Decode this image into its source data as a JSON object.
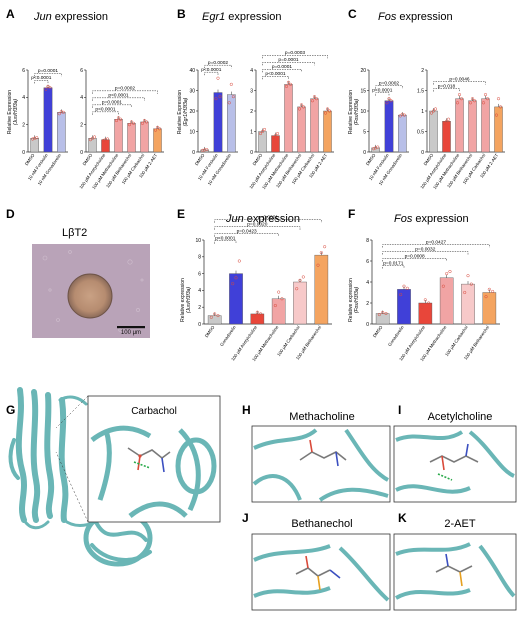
{
  "colors": {
    "grey": "#c9c9c9",
    "red": "#e8463a",
    "pink": "#f1a4a4",
    "orange": "#f4a460",
    "blue": "#4040d8",
    "lavender": "#b8bfe8",
    "lightpink": "#f7c9c9",
    "dots": "#d9493c",
    "teal": "#7ec8c8",
    "tealDark": "#3a8f8f"
  },
  "panels": {
    "A": {
      "letter": "A",
      "gene": "Jun",
      "title_suffix": " expression",
      "ylabel": "Relative Expression",
      "ylabel2": "(Jun/H3f3a)"
    },
    "B": {
      "letter": "B",
      "gene": "Egr1",
      "title_suffix": " expression",
      "ylabel": "Relative Expression",
      "ylabel2": "(Egr1/H3f3a)"
    },
    "C": {
      "letter": "C",
      "gene": "Fos",
      "title_suffix": " expression",
      "ylabel": "Relative Expression",
      "ylabel2": "(Fos/H3f3a)"
    },
    "D": {
      "letter": "D",
      "label": "LβT2",
      "scalebar": "100 μm"
    },
    "E": {
      "letter": "E",
      "gene": "Jun",
      "title_suffix": " expression",
      "ylabel": "Relative expression",
      "ylabel2": "(Jun/H3f3a)"
    },
    "F": {
      "letter": "F",
      "gene": "Fos",
      "title_suffix": " expression",
      "ylabel": "Relative expression",
      "ylabel2": "(Fos/H3f3a)"
    },
    "G": {
      "letter": "G",
      "title": "Carbachol"
    },
    "H": {
      "letter": "H",
      "title": "Methacholine"
    },
    "I": {
      "letter": "I",
      "title": "Acetylcholine"
    },
    "J": {
      "letter": "J",
      "title": "Bethanechol"
    },
    "K": {
      "letter": "K",
      "title": "2-AET"
    }
  },
  "chart_data": [
    {
      "panel": "A-left",
      "type": "bar",
      "categories": [
        "DMSO",
        "10 nM Forskolin",
        "10 nM Gonadorelin"
      ],
      "values": [
        1.0,
        4.7,
        2.9
      ],
      "colors": [
        "grey",
        "blue",
        "lavender"
      ],
      "ylim": [
        0,
        6
      ],
      "yticks": [
        0,
        2,
        4,
        6
      ],
      "points": [
        [
          0.95,
          1.0,
          1.05
        ],
        [
          4.6,
          4.8,
          4.7
        ],
        [
          2.8,
          2.95,
          2.9
        ]
      ],
      "sig": [
        {
          "a": 0,
          "b": 1,
          "label": "p<0.0001"
        },
        {
          "a": 0,
          "b": 2,
          "label": "p=0.0001"
        }
      ]
    },
    {
      "panel": "A-right",
      "type": "bar",
      "categories": [
        "DMSO",
        "100 μM Acetylcholine",
        "100 μM Methacholine",
        "100 μM Bethanechol",
        "100 μM Carbachol",
        "100 μM 2-AET"
      ],
      "values": [
        1.0,
        0.9,
        2.4,
        2.1,
        2.2,
        1.7
      ],
      "colors": [
        "grey",
        "red",
        "pink",
        "pink",
        "pink",
        "orange"
      ],
      "ylim": [
        0,
        6
      ],
      "yticks": [
        0,
        2,
        4,
        6
      ],
      "points": [
        [
          0.9,
          1.0,
          1.1
        ],
        [
          0.85,
          0.9,
          0.95
        ],
        [
          2.3,
          2.5,
          2.4
        ],
        [
          2.0,
          2.2,
          2.1
        ],
        [
          2.1,
          2.3,
          2.2
        ],
        [
          1.6,
          1.8,
          1.7
        ]
      ],
      "sig": [
        {
          "a": 0,
          "b": 2,
          "label": "p<0.0001"
        },
        {
          "a": 0,
          "b": 3,
          "label": "p=0.0001"
        },
        {
          "a": 0,
          "b": 4,
          "label": "p<0.0001"
        },
        {
          "a": 0,
          "b": 5,
          "label": "p=0.0002"
        }
      ]
    },
    {
      "panel": "B-left",
      "type": "bar",
      "categories": [
        "DMSO",
        "10 nM Forskolin",
        "10 nM Gonadorelin"
      ],
      "values": [
        1.0,
        29,
        28
      ],
      "colors": [
        "grey",
        "blue",
        "lavender"
      ],
      "ylim": [
        0,
        40
      ],
      "yticks": [
        0,
        10,
        20,
        30,
        40
      ],
      "points": [
        [
          0.8,
          1.0,
          1.2
        ],
        [
          26,
          36,
          27
        ],
        [
          24,
          33,
          27
        ]
      ],
      "sig": [
        {
          "a": 0,
          "b": 1,
          "label": "p<0.0001"
        },
        {
          "a": 0,
          "b": 2,
          "label": "p=0.0002"
        }
      ]
    },
    {
      "panel": "B-right",
      "type": "bar",
      "categories": [
        "DMSO",
        "100 μM Acetylcholine",
        "100 μM Methacholine",
        "100 μM Bethanechol",
        "100 μM Carbachol",
        "100 μM 2-AET"
      ],
      "values": [
        1.0,
        0.8,
        3.3,
        2.2,
        2.6,
        2.0
      ],
      "colors": [
        "grey",
        "red",
        "pink",
        "pink",
        "pink",
        "orange"
      ],
      "ylim": [
        0,
        4
      ],
      "yticks": [
        0,
        1,
        2,
        3,
        4
      ],
      "points": [
        [
          0.9,
          1.0,
          1.1
        ],
        [
          0.7,
          0.8,
          0.9
        ],
        [
          3.2,
          3.4,
          3.3
        ],
        [
          2.1,
          2.3,
          2.2
        ],
        [
          2.5,
          2.7,
          2.6
        ],
        [
          1.9,
          2.1,
          2.0
        ]
      ],
      "sig": [
        {
          "a": 0,
          "b": 2,
          "label": "p<0.0001"
        },
        {
          "a": 0,
          "b": 3,
          "label": "p=0.0001"
        },
        {
          "a": 0,
          "b": 4,
          "label": "p=0.0001"
        },
        {
          "a": 0,
          "b": 5,
          "label": "p=0.0003"
        }
      ]
    },
    {
      "panel": "C-left",
      "type": "bar",
      "categories": [
        "DMSO",
        "10 nM Forskolin",
        "10 nM Gonadorelin"
      ],
      "values": [
        1.0,
        12.5,
        9.0
      ],
      "colors": [
        "grey",
        "blue",
        "lavender"
      ],
      "ylim": [
        0,
        20
      ],
      "yticks": [
        0,
        5,
        10,
        15,
        20
      ],
      "points": [
        [
          0.8,
          1.0,
          1.2
        ],
        [
          12,
          13,
          12.5
        ],
        [
          8.8,
          9.2,
          9.0
        ]
      ],
      "sig": [
        {
          "a": 0,
          "b": 1,
          "label": "p<0.0001"
        },
        {
          "a": 0,
          "b": 2,
          "label": "p=0.0002"
        }
      ]
    },
    {
      "panel": "C-right",
      "type": "bar",
      "categories": [
        "DMSO",
        "100 μM Acetylcholine",
        "100 μM Methacholine",
        "100 μM Bethanechol",
        "100 μM Carbachol",
        "100 μM 2-AET"
      ],
      "values": [
        1.0,
        0.75,
        1.3,
        1.25,
        1.3,
        1.1
      ],
      "colors": [
        "grey",
        "red",
        "pink",
        "pink",
        "pink",
        "orange"
      ],
      "ylim": [
        0,
        2
      ],
      "yticks": [
        0.0,
        0.5,
        1.0,
        1.5,
        2.0
      ],
      "points": [
        [
          0.95,
          1.0,
          1.05
        ],
        [
          0.7,
          0.75,
          0.8
        ],
        [
          1.2,
          1.4,
          1.3
        ],
        [
          1.2,
          1.3,
          1.25
        ],
        [
          1.2,
          1.4,
          1.3
        ],
        [
          0.9,
          1.3,
          1.1
        ]
      ],
      "sig": [
        {
          "a": 0,
          "b": 2,
          "label": "p=0.018"
        },
        {
          "a": 0,
          "b": 4,
          "label": "p=0.0046"
        }
      ]
    },
    {
      "panel": "E",
      "type": "bar",
      "categories": [
        "DMSO",
        "Gonadorelin",
        "100 μM Acetylcholine",
        "100 μM Methacholine",
        "100 μM Carbachol",
        "100 μM Bethanechol"
      ],
      "values": [
        1.0,
        6.0,
        1.2,
        3.0,
        5.0,
        8.2
      ],
      "colors": [
        "grey",
        "blue",
        "red",
        "pink",
        "lightpink",
        "orange"
      ],
      "ylim": [
        0,
        10
      ],
      "yticks": [
        0,
        2,
        4,
        6,
        8,
        10
      ],
      "points": [
        [
          0.8,
          1.2,
          1.0
        ],
        [
          4.8,
          5.5,
          7.5
        ],
        [
          1.0,
          1.4,
          1.2
        ],
        [
          2.2,
          3.8,
          3.0
        ],
        [
          4.2,
          5.2,
          5.6
        ],
        [
          7.0,
          8.5,
          9.2
        ]
      ],
      "sig": [
        {
          "a": 0,
          "b": 1,
          "label": "p<0.0001"
        },
        {
          "a": 0,
          "b": 3,
          "label": "p=0.0423"
        },
        {
          "a": 0,
          "b": 4,
          "label": "p=0.0020"
        },
        {
          "a": 0,
          "b": 5,
          "label": "p=0.0001"
        }
      ]
    },
    {
      "panel": "F",
      "type": "bar",
      "categories": [
        "DMSO",
        "Gonadorelin",
        "100 μM Acetylcholine",
        "100 μM Methacholine",
        "100 μM Carbachol",
        "100 μM Bethanechol"
      ],
      "values": [
        1.0,
        3.3,
        2.0,
        4.4,
        3.8,
        3.0
      ],
      "colors": [
        "grey",
        "blue",
        "red",
        "pink",
        "lightpink",
        "orange"
      ],
      "ylim": [
        0,
        8
      ],
      "yticks": [
        0,
        2,
        4,
        6,
        8
      ],
      "points": [
        [
          0.9,
          1.1,
          1.0
        ],
        [
          2.8,
          3.6,
          3.4
        ],
        [
          1.6,
          2.3,
          2.0
        ],
        [
          3.6,
          4.8,
          5.0
        ],
        [
          3.0,
          4.6,
          3.8
        ],
        [
          2.6,
          3.3,
          3.1
        ]
      ],
      "sig": [
        {
          "a": 0,
          "b": 1,
          "label": "p=0.0171"
        },
        {
          "a": 0,
          "b": 3,
          "label": "p=0.0008"
        },
        {
          "a": 0,
          "b": 4,
          "label": "p=0.0032"
        },
        {
          "a": 0,
          "b": 5,
          "label": "p=0.0427"
        }
      ]
    }
  ]
}
